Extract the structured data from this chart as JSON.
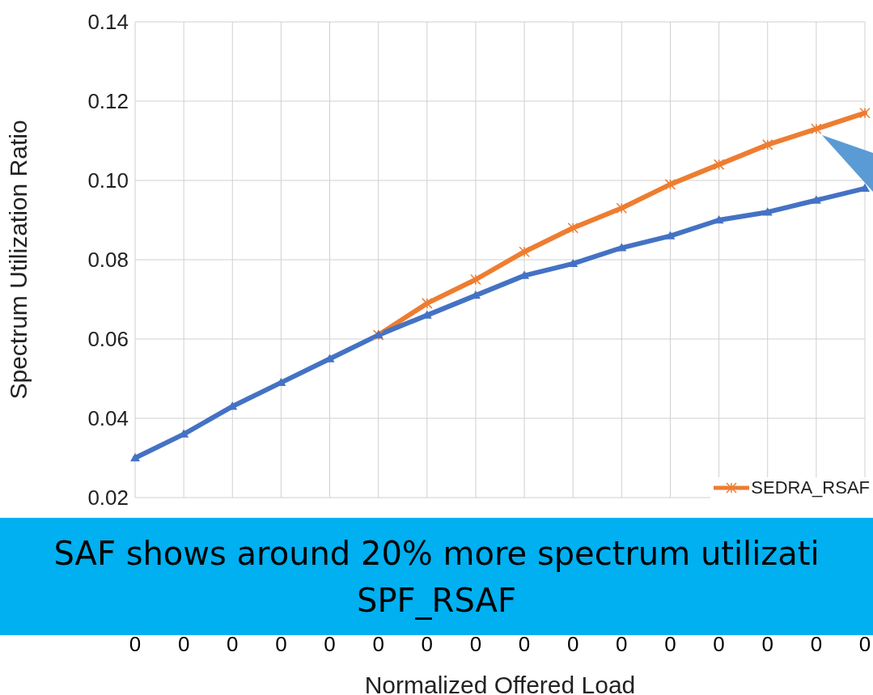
{
  "chart_data": {
    "type": "line",
    "xlabel": "Normalized Offered Load",
    "ylabel": "Spectrum Utilization Ratio",
    "categories": [
      "0",
      "0",
      "0",
      "0",
      "0",
      "0",
      "0",
      "0",
      "0",
      "0",
      "0",
      "0",
      "0",
      "0",
      "0",
      "0"
    ],
    "ylim": [
      0.02,
      0.14
    ],
    "yticks": [
      0.02,
      0.04,
      0.06,
      0.08,
      {
        "value": 0.1,
        "label": "0.10"
      },
      0.12,
      0.14
    ],
    "grid": true,
    "legend": "bottom right",
    "line_style": "solid",
    "series": [
      {
        "color": "#4472c4",
        "marker": "triangle",
        "values": [
          0.03,
          0.036,
          0.043,
          0.049,
          0.055,
          0.061,
          0.066,
          0.071,
          0.076,
          0.079,
          0.083,
          0.086,
          0.09,
          0.092,
          0.095,
          0.098
        ]
      },
      {
        "name": "SEDRA_RSAF",
        "color": "#ed7d31",
        "marker": "cross",
        "values": [
          null,
          null,
          null,
          null,
          null,
          0.061,
          0.069,
          0.075,
          0.082,
          0.088,
          0.093,
          0.099,
          0.104,
          0.109,
          0.113,
          0.117
        ]
      }
    ],
    "annotations": [
      "SAF shows around 20% more spectrum utilizati",
      "SPF_RSAF"
    ]
  }
}
